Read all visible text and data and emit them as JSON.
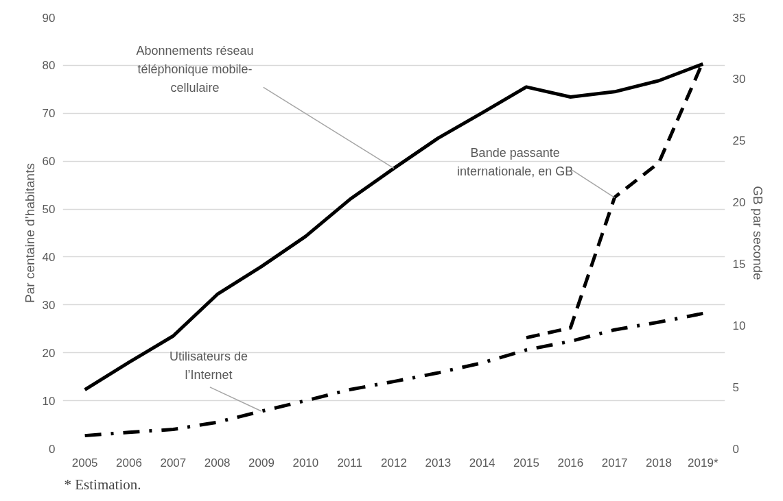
{
  "chart_data": {
    "type": "line",
    "ylabel": "Par centaine d’habitants",
    "y2label": "GB par seconde",
    "categories": [
      "2005",
      "2006",
      "2007",
      "2008",
      "2009",
      "2010",
      "2011",
      "2012",
      "2013",
      "2014",
      "2015",
      "2016",
      "2017",
      "2018",
      "2019*"
    ],
    "ylim": [
      0,
      90
    ],
    "yticks": [
      0,
      10,
      20,
      30,
      40,
      50,
      60,
      70,
      80,
      90
    ],
    "y2lim": [
      0,
      35
    ],
    "y2ticks": [
      0,
      5,
      10,
      15,
      20,
      25,
      30,
      35
    ],
    "grid": "y",
    "series": [
      {
        "color": "#000000",
        "line_style": "solid",
        "values": [
          12.3,
          18.0,
          23.5,
          32.2,
          38.0,
          44.3,
          52.0,
          58.5,
          64.8,
          70.1,
          75.5,
          73.4,
          74.5,
          76.8,
          80.3
        ]
      },
      {
        "color": "#000000",
        "line_style": "dashdot",
        "values": [
          2.7,
          3.4,
          4.0,
          5.5,
          7.8,
          10.0,
          12.3,
          14.0,
          15.8,
          17.9,
          20.6,
          22.4,
          24.8,
          26.4,
          28.2
        ]
      },
      {
        "color": "#000000",
        "line_style": "dashed",
        "axis": "y2",
        "values": [
          null,
          null,
          null,
          null,
          null,
          null,
          null,
          null,
          null,
          null,
          9.0,
          9.8,
          20.4,
          23.2,
          31.4
        ]
      }
    ],
    "annotations": [
      {
        "text": "Abonnements réseau\ntéléphonique mobile-\ncellulaire",
        "x": "2012",
        "y": 58.5
      },
      {
        "text": "Utilisateurs de\nl’Internet",
        "x": "2009",
        "y": 7.8
      },
      {
        "text": "Bande passante\ninternationale, en GB",
        "x": "2017",
        "y": 52.4
      },
      "* Estimation."
    ]
  }
}
